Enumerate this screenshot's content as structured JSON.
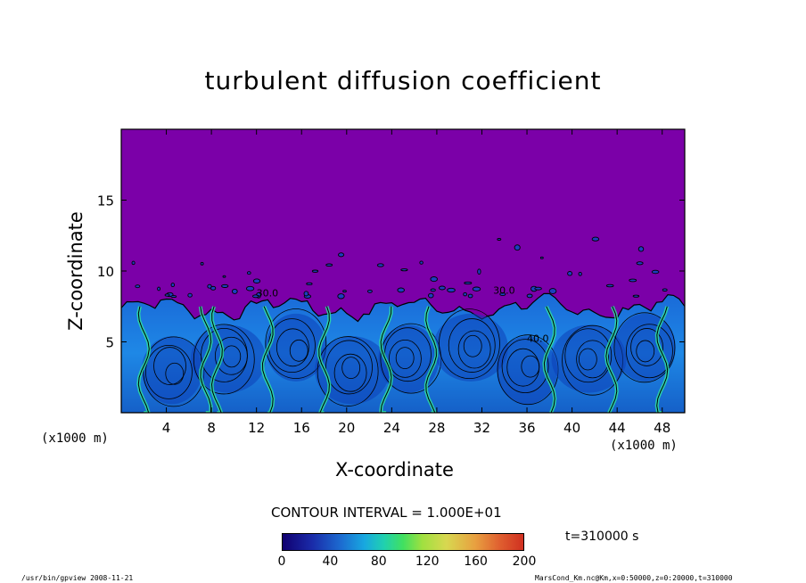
{
  "chart_data": {
    "type": "heatmap",
    "title": "turbulent diffusion coefficient",
    "xlabel": "X-coordinate",
    "ylabel": "Z-coordinate",
    "x_unit": "(x1000 m)",
    "xlim": [
      0,
      50
    ],
    "ylim": [
      0,
      20
    ],
    "x_ticks": [
      4,
      8,
      12,
      16,
      20,
      24,
      28,
      32,
      36,
      40,
      44,
      48
    ],
    "y_ticks": [
      5,
      10,
      15
    ],
    "contour_interval": "CONTOUR INTERVAL = 1.000E+01",
    "contour_labels": [
      "30.0",
      "30.0",
      "40.0"
    ],
    "time_label": "t=310000 s",
    "colorbar": {
      "ticks": [
        0,
        40,
        80,
        120,
        160,
        200
      ],
      "range": [
        0,
        200
      ]
    },
    "background_color": "#7b00a8",
    "turbulent_layer_top_km": 8
  },
  "footer": {
    "left": "/usr/bin/gpview  2008-11-21",
    "right": "MarsCond_Km.nc@Km,x=0:50000,z=0:20000,t=310000"
  }
}
